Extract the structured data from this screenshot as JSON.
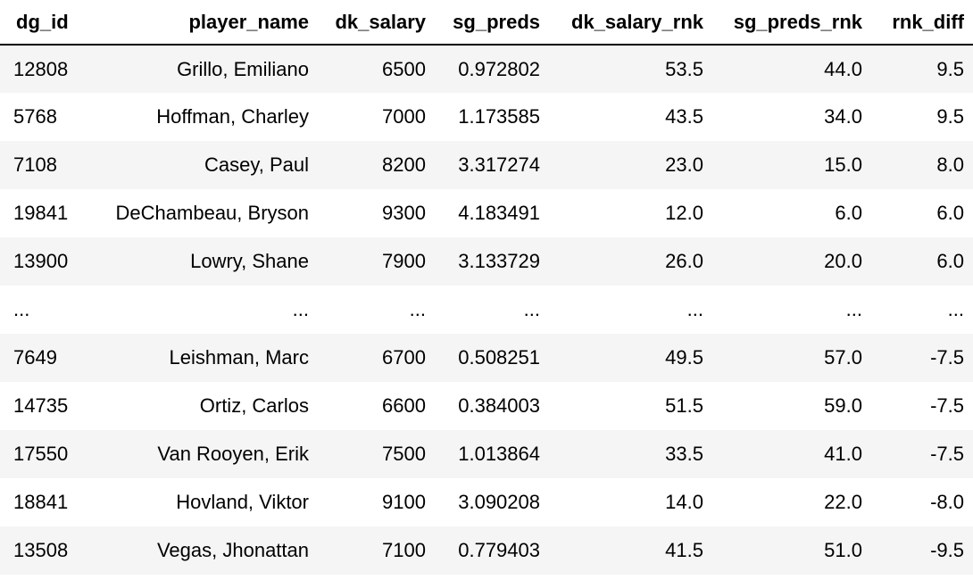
{
  "table": {
    "headers": [
      "dg_id",
      "player_name",
      "dk_salary",
      "sg_preds",
      "dk_salary_rnk",
      "sg_preds_rnk",
      "rnk_diff"
    ],
    "rows": [
      [
        "12808",
        "Grillo, Emiliano",
        "6500",
        "0.972802",
        "53.5",
        "44.0",
        "9.5"
      ],
      [
        "5768",
        "Hoffman, Charley",
        "7000",
        "1.173585",
        "43.5",
        "34.0",
        "9.5"
      ],
      [
        "7108",
        "Casey, Paul",
        "8200",
        "3.317274",
        "23.0",
        "15.0",
        "8.0"
      ],
      [
        "19841",
        "DeChambeau, Bryson",
        "9300",
        "4.183491",
        "12.0",
        "6.0",
        "6.0"
      ],
      [
        "13900",
        "Lowry, Shane",
        "7900",
        "3.133729",
        "26.0",
        "20.0",
        "6.0"
      ],
      [
        "...",
        "...",
        "...",
        "...",
        "...",
        "...",
        "..."
      ],
      [
        "7649",
        "Leishman, Marc",
        "6700",
        "0.508251",
        "49.5",
        "57.0",
        "-7.5"
      ],
      [
        "14735",
        "Ortiz, Carlos",
        "6600",
        "0.384003",
        "51.5",
        "59.0",
        "-7.5"
      ],
      [
        "17550",
        "Van Rooyen, Erik",
        "7500",
        "1.013864",
        "33.5",
        "41.0",
        "-7.5"
      ],
      [
        "18841",
        "Hovland, Viktor",
        "9100",
        "3.090208",
        "14.0",
        "22.0",
        "-8.0"
      ],
      [
        "13508",
        "Vegas, Jhonattan",
        "7100",
        "0.779403",
        "41.5",
        "51.0",
        "-9.5"
      ]
    ]
  }
}
